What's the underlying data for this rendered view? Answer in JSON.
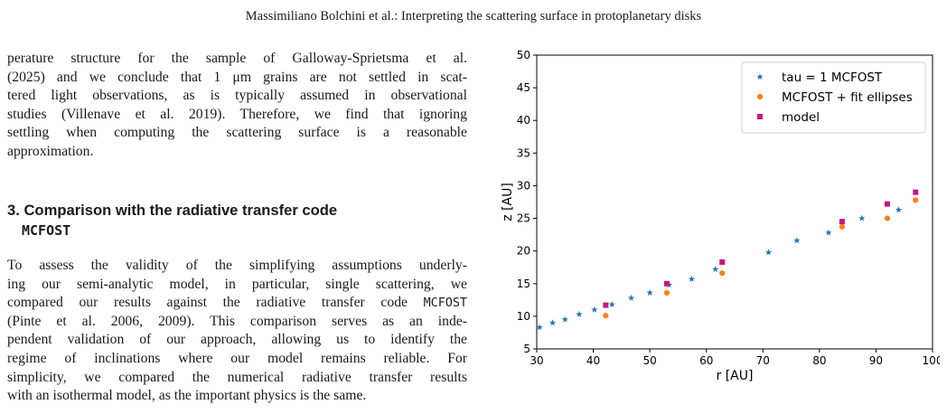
{
  "page": {
    "running_head": "Massimiliano Bolchini et al.: Interpreting the scattering surface in protoplanetary disks"
  },
  "para1": {
    "lines": [
      "perature structure for the sample of Galloway-Sprietsma et al.",
      "(2025) and we conclude that 1 μm grains are not settled in scat-",
      "tered light observations, as is typically assumed in observational",
      "studies (Villenave et al. 2019). Therefore, we find that ignoring",
      "settling when computing the scattering surface is a reasonable",
      "approximation."
    ]
  },
  "section": {
    "line1": "3. Comparison with the radiative transfer code",
    "line2": "MCFOST"
  },
  "para2": {
    "lines": [
      "To assess the validity of the simplifying assumptions underly-",
      "ing our semi-analytic model, in particular, single scattering, we",
      "compared our results against the radiative transfer code MCFOST",
      "(Pinte et al. 2006, 2009). This comparison serves as an inde-",
      "pendent validation of our approach, allowing us to identify the",
      "regime of inclinations where our model remains reliable. For",
      "simplicity, we compared the numerical radiative transfer results",
      "with an isothermal model, as the important physics is the same."
    ]
  },
  "chart_data": {
    "type": "scatter",
    "title": "",
    "xlabel": "r [AU]",
    "ylabel": "z [AU]",
    "xlim": [
      30,
      100
    ],
    "ylim": [
      5,
      50
    ],
    "xticks": [
      30,
      40,
      50,
      60,
      70,
      80,
      90,
      100
    ],
    "yticks": [
      5,
      10,
      15,
      20,
      25,
      30,
      35,
      40,
      45,
      50
    ],
    "grid": false,
    "legend_position": "top-right",
    "series": [
      {
        "name": "tau = 1 MCFOST",
        "marker": "star",
        "color": "#1f77b4",
        "points": [
          [
            30.5,
            8.3
          ],
          [
            32.8,
            9.0
          ],
          [
            35.0,
            9.5
          ],
          [
            37.5,
            10.3
          ],
          [
            40.2,
            11.0
          ],
          [
            43.3,
            11.8
          ],
          [
            46.7,
            12.8
          ],
          [
            50.0,
            13.6
          ],
          [
            53.4,
            14.8
          ],
          [
            57.4,
            15.7
          ],
          [
            61.6,
            17.2
          ],
          [
            71.0,
            19.8
          ],
          [
            76.0,
            21.6
          ],
          [
            81.6,
            22.8
          ],
          [
            87.5,
            25.0
          ],
          [
            94.0,
            26.3
          ]
        ]
      },
      {
        "name": "MCFOST + fit ellipses",
        "marker": "circle",
        "color": "#ff7f0e",
        "points": [
          [
            42.2,
            10.1
          ],
          [
            53.0,
            13.6
          ],
          [
            62.8,
            16.6
          ],
          [
            84.0,
            23.7
          ],
          [
            92.0,
            25.0
          ],
          [
            97.0,
            27.8
          ]
        ]
      },
      {
        "name": "model",
        "marker": "square",
        "color": "#c71585",
        "points": [
          [
            42.2,
            11.7
          ],
          [
            53.0,
            15.0
          ],
          [
            62.8,
            18.3
          ],
          [
            84.0,
            24.5
          ],
          [
            92.0,
            27.2
          ],
          [
            97.0,
            29.0
          ]
        ]
      }
    ]
  }
}
